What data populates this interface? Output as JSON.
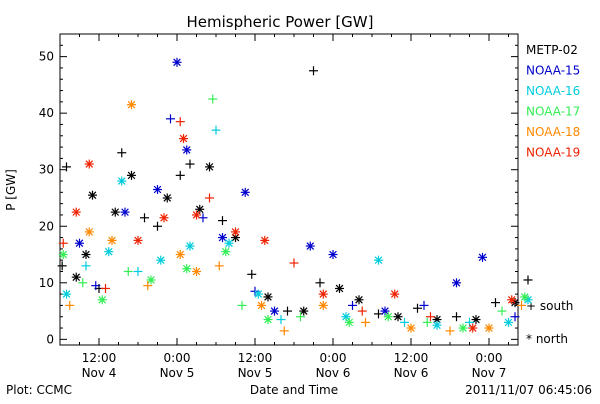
{
  "chart_data": {
    "type": "scatter",
    "title": "Hemispheric Power [GW]",
    "ylabel": "P [GW]",
    "xlabel": "Date and Time",
    "ylim": [
      -1,
      54
    ],
    "xlim_hours_start": "2011-11-04 06:00",
    "y_ticks": [
      0,
      10,
      20,
      30,
      40,
      50
    ],
    "x_ticks": [
      {
        "t": "2011-11-04 12:00",
        "line1": "12:00",
        "line2": "Nov 4"
      },
      {
        "t": "2011-11-05 00:00",
        "line1": "0:00",
        "line2": "Nov 5"
      },
      {
        "t": "2011-11-05 12:00",
        "line1": "12:00",
        "line2": "Nov 5"
      },
      {
        "t": "2011-11-06 00:00",
        "line1": "0:00",
        "line2": "Nov 6"
      },
      {
        "t": "2011-11-06 12:00",
        "line1": "12:00",
        "line2": "Nov 6"
      },
      {
        "t": "2011-11-07 00:00",
        "line1": "0:00",
        "line2": "Nov 7"
      }
    ],
    "markers": {
      "south": "+",
      "north": "*"
    },
    "legend_placement": "right",
    "series": [
      {
        "name": "METP-02",
        "color": "#000000",
        "points": [
          {
            "x": "2011-11-04 06:20",
            "y": 13,
            "m": "+"
          },
          {
            "x": "2011-11-04 07:00",
            "y": 30.5,
            "m": "+"
          },
          {
            "x": "2011-11-04 08:30",
            "y": 11,
            "m": "*"
          },
          {
            "x": "2011-11-04 10:00",
            "y": 15,
            "m": "*"
          },
          {
            "x": "2011-11-04 11:00",
            "y": 25.5,
            "m": "*"
          },
          {
            "x": "2011-11-04 12:00",
            "y": 9,
            "m": "+"
          },
          {
            "x": "2011-11-04 14:30",
            "y": 22.5,
            "m": "*"
          },
          {
            "x": "2011-11-04 15:30",
            "y": 33,
            "m": "+"
          },
          {
            "x": "2011-11-04 17:00",
            "y": 29,
            "m": "*"
          },
          {
            "x": "2011-11-04 19:00",
            "y": 21.5,
            "m": "+"
          },
          {
            "x": "2011-11-04 21:00",
            "y": 20,
            "m": "+"
          },
          {
            "x": "2011-11-04 22:30",
            "y": 25,
            "m": "*"
          },
          {
            "x": "2011-11-05 00:30",
            "y": 29,
            "m": "+"
          },
          {
            "x": "2011-11-05 02:00",
            "y": 31,
            "m": "+"
          },
          {
            "x": "2011-11-05 03:30",
            "y": 23,
            "m": "*"
          },
          {
            "x": "2011-11-05 05:00",
            "y": 30.5,
            "m": "*"
          },
          {
            "x": "2011-11-05 07:00",
            "y": 21,
            "m": "+"
          },
          {
            "x": "2011-11-05 09:00",
            "y": 18,
            "m": "*"
          },
          {
            "x": "2011-11-05 11:30",
            "y": 11.5,
            "m": "+"
          },
          {
            "x": "2011-11-05 14:00",
            "y": 7.5,
            "m": "*"
          },
          {
            "x": "2011-11-05 17:00",
            "y": 5,
            "m": "+"
          },
          {
            "x": "2011-11-05 19:30",
            "y": 5,
            "m": "*"
          },
          {
            "x": "2011-11-05 21:00",
            "y": 47.5,
            "m": "+"
          },
          {
            "x": "2011-11-05 22:00",
            "y": 10,
            "m": "+"
          },
          {
            "x": "2011-11-06 01:00",
            "y": 9,
            "m": "*"
          },
          {
            "x": "2011-11-06 04:00",
            "y": 7,
            "m": "*"
          },
          {
            "x": "2011-11-06 07:00",
            "y": 4.5,
            "m": "+"
          },
          {
            "x": "2011-11-06 10:00",
            "y": 4,
            "m": "*"
          },
          {
            "x": "2011-11-06 13:00",
            "y": 5.5,
            "m": "+"
          },
          {
            "x": "2011-11-06 16:00",
            "y": 3.5,
            "m": "*"
          },
          {
            "x": "2011-11-06 19:00",
            "y": 4,
            "m": "+"
          },
          {
            "x": "2011-11-06 22:00",
            "y": 3.5,
            "m": "*"
          },
          {
            "x": "2011-11-07 01:00",
            "y": 6.5,
            "m": "+"
          },
          {
            "x": "2011-11-07 04:00",
            "y": 6.5,
            "m": "*"
          },
          {
            "x": "2011-11-07 06:00",
            "y": 10.5,
            "m": "+"
          }
        ]
      },
      {
        "name": "NOAA-15",
        "color": "#0000cc",
        "points": [
          {
            "x": "2011-11-04 09:00",
            "y": 17,
            "m": "*"
          },
          {
            "x": "2011-11-04 11:30",
            "y": 9.5,
            "m": "+"
          },
          {
            "x": "2011-11-04 16:00",
            "y": 22.5,
            "m": "*"
          },
          {
            "x": "2011-11-04 21:00",
            "y": 26.5,
            "m": "*"
          },
          {
            "x": "2011-11-04 23:00",
            "y": 39,
            "m": "+"
          },
          {
            "x": "2011-11-05 00:00",
            "y": 49,
            "m": "*"
          },
          {
            "x": "2011-11-05 01:30",
            "y": 33.5,
            "m": "*"
          },
          {
            "x": "2011-11-05 04:00",
            "y": 21.5,
            "m": "+"
          },
          {
            "x": "2011-11-05 07:00",
            "y": 18,
            "m": "*"
          },
          {
            "x": "2011-11-05 10:30",
            "y": 26,
            "m": "*"
          },
          {
            "x": "2011-11-05 12:00",
            "y": 8.5,
            "m": "+"
          },
          {
            "x": "2011-11-05 15:00",
            "y": 5,
            "m": "*"
          },
          {
            "x": "2011-11-05 20:30",
            "y": 16.5,
            "m": "*"
          },
          {
            "x": "2011-11-06 00:00",
            "y": 15,
            "m": "*"
          },
          {
            "x": "2011-11-06 03:00",
            "y": 6,
            "m": "+"
          },
          {
            "x": "2011-11-06 08:00",
            "y": 5,
            "m": "*"
          },
          {
            "x": "2011-11-06 14:00",
            "y": 6,
            "m": "+"
          },
          {
            "x": "2011-11-06 19:00",
            "y": 10,
            "m": "*"
          },
          {
            "x": "2011-11-06 23:00",
            "y": 14.5,
            "m": "*"
          },
          {
            "x": "2011-11-07 04:00",
            "y": 4,
            "m": "+"
          }
        ]
      },
      {
        "name": "NOAA-16",
        "color": "#00ccdd",
        "points": [
          {
            "x": "2011-11-04 07:00",
            "y": 8,
            "m": "*"
          },
          {
            "x": "2011-11-04 10:00",
            "y": 13,
            "m": "+"
          },
          {
            "x": "2011-11-04 13:30",
            "y": 15.5,
            "m": "*"
          },
          {
            "x": "2011-11-04 15:30",
            "y": 28,
            "m": "*"
          },
          {
            "x": "2011-11-04 18:00",
            "y": 12,
            "m": "+"
          },
          {
            "x": "2011-11-04 21:30",
            "y": 14,
            "m": "*"
          },
          {
            "x": "2011-11-05 02:00",
            "y": 16.5,
            "m": "*"
          },
          {
            "x": "2011-11-05 06:00",
            "y": 37,
            "m": "+"
          },
          {
            "x": "2011-11-05 08:00",
            "y": 17,
            "m": "*"
          },
          {
            "x": "2011-11-05 12:30",
            "y": 8,
            "m": "*"
          },
          {
            "x": "2011-11-05 16:00",
            "y": 3.5,
            "m": "+"
          },
          {
            "x": "2011-11-06 02:00",
            "y": 4,
            "m": "*"
          },
          {
            "x": "2011-11-06 07:00",
            "y": 14,
            "m": "*"
          },
          {
            "x": "2011-11-06 11:00",
            "y": 3,
            "m": "+"
          },
          {
            "x": "2011-11-06 16:00",
            "y": 2.5,
            "m": "*"
          },
          {
            "x": "2011-11-06 21:00",
            "y": 3,
            "m": "+"
          },
          {
            "x": "2011-11-07 03:00",
            "y": 3,
            "m": "*"
          },
          {
            "x": "2011-11-07 06:00",
            "y": 7,
            "m": "*"
          }
        ]
      },
      {
        "name": "NOAA-17",
        "color": "#33ee55",
        "points": [
          {
            "x": "2011-11-04 06:30",
            "y": 15,
            "m": "*"
          },
          {
            "x": "2011-11-04 09:30",
            "y": 10,
            "m": "+"
          },
          {
            "x": "2011-11-04 12:30",
            "y": 7,
            "m": "*"
          },
          {
            "x": "2011-11-04 16:30",
            "y": 12,
            "m": "+"
          },
          {
            "x": "2011-11-04 20:00",
            "y": 10.5,
            "m": "*"
          },
          {
            "x": "2011-11-05 01:30",
            "y": 12.5,
            "m": "*"
          },
          {
            "x": "2011-11-05 05:30",
            "y": 42.5,
            "m": "+"
          },
          {
            "x": "2011-11-05 07:30",
            "y": 15.5,
            "m": "*"
          },
          {
            "x": "2011-11-05 10:00",
            "y": 6,
            "m": "+"
          },
          {
            "x": "2011-11-05 14:00",
            "y": 3.5,
            "m": "*"
          },
          {
            "x": "2011-11-05 19:00",
            "y": 4,
            "m": "+"
          },
          {
            "x": "2011-11-06 02:30",
            "y": 3,
            "m": "*"
          },
          {
            "x": "2011-11-06 08:30",
            "y": 4,
            "m": "*"
          },
          {
            "x": "2011-11-06 14:30",
            "y": 3,
            "m": "+"
          },
          {
            "x": "2011-11-06 20:00",
            "y": 2,
            "m": "*"
          },
          {
            "x": "2011-11-07 02:00",
            "y": 5,
            "m": "+"
          },
          {
            "x": "2011-11-07 05:30",
            "y": 7.5,
            "m": "*"
          }
        ]
      },
      {
        "name": "NOAA-18",
        "color": "#ff8800",
        "points": [
          {
            "x": "2011-11-04 07:30",
            "y": 6,
            "m": "+"
          },
          {
            "x": "2011-11-04 10:30",
            "y": 19,
            "m": "*"
          },
          {
            "x": "2011-11-04 14:00",
            "y": 17.5,
            "m": "*"
          },
          {
            "x": "2011-11-04 17:00",
            "y": 41.5,
            "m": "*"
          },
          {
            "x": "2011-11-04 19:30",
            "y": 9.5,
            "m": "+"
          },
          {
            "x": "2011-11-05 00:30",
            "y": 15,
            "m": "*"
          },
          {
            "x": "2011-11-05 03:00",
            "y": 12,
            "m": "*"
          },
          {
            "x": "2011-11-05 06:30",
            "y": 13,
            "m": "+"
          },
          {
            "x": "2011-11-05 13:00",
            "y": 6,
            "m": "*"
          },
          {
            "x": "2011-11-05 16:30",
            "y": 1.5,
            "m": "+"
          },
          {
            "x": "2011-11-05 22:30",
            "y": 6,
            "m": "*"
          },
          {
            "x": "2011-11-06 05:00",
            "y": 3,
            "m": "+"
          },
          {
            "x": "2011-11-06 12:00",
            "y": 2,
            "m": "*"
          },
          {
            "x": "2011-11-06 18:00",
            "y": 1.5,
            "m": "+"
          },
          {
            "x": "2011-11-07 00:00",
            "y": 2,
            "m": "*"
          },
          {
            "x": "2011-11-07 05:00",
            "y": 6,
            "m": "+"
          }
        ]
      },
      {
        "name": "NOAA-19",
        "color": "#ee2200",
        "points": [
          {
            "x": "2011-11-04 06:30",
            "y": 17,
            "m": "+"
          },
          {
            "x": "2011-11-04 08:30",
            "y": 22.5,
            "m": "*"
          },
          {
            "x": "2011-11-04 10:30",
            "y": 31,
            "m": "*"
          },
          {
            "x": "2011-11-04 13:00",
            "y": 9,
            "m": "+"
          },
          {
            "x": "2011-11-04 18:00",
            "y": 17.5,
            "m": "*"
          },
          {
            "x": "2011-11-04 22:00",
            "y": 21.5,
            "m": "*"
          },
          {
            "x": "2011-11-05 00:30",
            "y": 38.5,
            "m": "+"
          },
          {
            "x": "2011-11-05 01:00",
            "y": 35.5,
            "m": "*"
          },
          {
            "x": "2011-11-05 03:00",
            "y": 22,
            "m": "*"
          },
          {
            "x": "2011-11-05 05:00",
            "y": 25,
            "m": "+"
          },
          {
            "x": "2011-11-05 09:00",
            "y": 19,
            "m": "*"
          },
          {
            "x": "2011-11-05 13:30",
            "y": 17.5,
            "m": "*"
          },
          {
            "x": "2011-11-05 18:00",
            "y": 13.5,
            "m": "+"
          },
          {
            "x": "2011-11-05 22:30",
            "y": 8,
            "m": "*"
          },
          {
            "x": "2011-11-06 04:30",
            "y": 5,
            "m": "+"
          },
          {
            "x": "2011-11-06 09:30",
            "y": 8,
            "m": "*"
          },
          {
            "x": "2011-11-06 15:00",
            "y": 4,
            "m": "+"
          },
          {
            "x": "2011-11-06 21:30",
            "y": 2,
            "m": "*"
          },
          {
            "x": "2011-11-07 03:30",
            "y": 7,
            "m": "*"
          }
        ]
      }
    ]
  },
  "footer": {
    "plot_credit": "Plot: CCMC",
    "timestamp": "2011/11/07 06:45:06"
  },
  "legend_extra": {
    "south_label": "+ south",
    "north_label": "* north"
  }
}
